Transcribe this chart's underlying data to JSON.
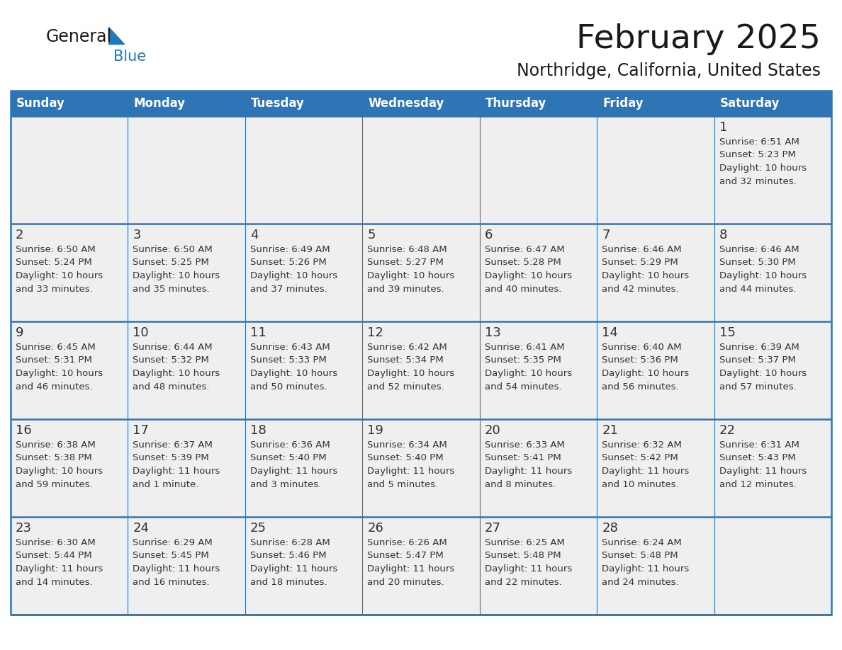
{
  "title": "February 2025",
  "subtitle": "Northridge, California, United States",
  "header_bg": "#2E75B6",
  "header_text_color": "#FFFFFF",
  "day_headers": [
    "Sunday",
    "Monday",
    "Tuesday",
    "Wednesday",
    "Thursday",
    "Friday",
    "Saturday"
  ],
  "row_bg": "#EFEFEF",
  "cell_border_color": "#2E75B6",
  "date_color": "#333333",
  "info_color": "#333333",
  "title_color": "#1A1A1A",
  "subtitle_color": "#1A1A1A",
  "logo_general_color": "#1A1A1A",
  "logo_blue_color": "#2277BB",
  "calendar_data": [
    [
      null,
      null,
      null,
      null,
      null,
      null,
      {
        "day": 1,
        "sunrise": "6:51 AM",
        "sunset": "5:23 PM",
        "daylight": "10 hours",
        "daylight2": "and 32 minutes."
      }
    ],
    [
      {
        "day": 2,
        "sunrise": "6:50 AM",
        "sunset": "5:24 PM",
        "daylight": "10 hours",
        "daylight2": "and 33 minutes."
      },
      {
        "day": 3,
        "sunrise": "6:50 AM",
        "sunset": "5:25 PM",
        "daylight": "10 hours",
        "daylight2": "and 35 minutes."
      },
      {
        "day": 4,
        "sunrise": "6:49 AM",
        "sunset": "5:26 PM",
        "daylight": "10 hours",
        "daylight2": "and 37 minutes."
      },
      {
        "day": 5,
        "sunrise": "6:48 AM",
        "sunset": "5:27 PM",
        "daylight": "10 hours",
        "daylight2": "and 39 minutes."
      },
      {
        "day": 6,
        "sunrise": "6:47 AM",
        "sunset": "5:28 PM",
        "daylight": "10 hours",
        "daylight2": "and 40 minutes."
      },
      {
        "day": 7,
        "sunrise": "6:46 AM",
        "sunset": "5:29 PM",
        "daylight": "10 hours",
        "daylight2": "and 42 minutes."
      },
      {
        "day": 8,
        "sunrise": "6:46 AM",
        "sunset": "5:30 PM",
        "daylight": "10 hours",
        "daylight2": "and 44 minutes."
      }
    ],
    [
      {
        "day": 9,
        "sunrise": "6:45 AM",
        "sunset": "5:31 PM",
        "daylight": "10 hours",
        "daylight2": "and 46 minutes."
      },
      {
        "day": 10,
        "sunrise": "6:44 AM",
        "sunset": "5:32 PM",
        "daylight": "10 hours",
        "daylight2": "and 48 minutes."
      },
      {
        "day": 11,
        "sunrise": "6:43 AM",
        "sunset": "5:33 PM",
        "daylight": "10 hours",
        "daylight2": "and 50 minutes."
      },
      {
        "day": 12,
        "sunrise": "6:42 AM",
        "sunset": "5:34 PM",
        "daylight": "10 hours",
        "daylight2": "and 52 minutes."
      },
      {
        "day": 13,
        "sunrise": "6:41 AM",
        "sunset": "5:35 PM",
        "daylight": "10 hours",
        "daylight2": "and 54 minutes."
      },
      {
        "day": 14,
        "sunrise": "6:40 AM",
        "sunset": "5:36 PM",
        "daylight": "10 hours",
        "daylight2": "and 56 minutes."
      },
      {
        "day": 15,
        "sunrise": "6:39 AM",
        "sunset": "5:37 PM",
        "daylight": "10 hours",
        "daylight2": "and 57 minutes."
      }
    ],
    [
      {
        "day": 16,
        "sunrise": "6:38 AM",
        "sunset": "5:38 PM",
        "daylight": "10 hours",
        "daylight2": "and 59 minutes."
      },
      {
        "day": 17,
        "sunrise": "6:37 AM",
        "sunset": "5:39 PM",
        "daylight": "11 hours",
        "daylight2": "and 1 minute."
      },
      {
        "day": 18,
        "sunrise": "6:36 AM",
        "sunset": "5:40 PM",
        "daylight": "11 hours",
        "daylight2": "and 3 minutes."
      },
      {
        "day": 19,
        "sunrise": "6:34 AM",
        "sunset": "5:40 PM",
        "daylight": "11 hours",
        "daylight2": "and 5 minutes."
      },
      {
        "day": 20,
        "sunrise": "6:33 AM",
        "sunset": "5:41 PM",
        "daylight": "11 hours",
        "daylight2": "and 8 minutes."
      },
      {
        "day": 21,
        "sunrise": "6:32 AM",
        "sunset": "5:42 PM",
        "daylight": "11 hours",
        "daylight2": "and 10 minutes."
      },
      {
        "day": 22,
        "sunrise": "6:31 AM",
        "sunset": "5:43 PM",
        "daylight": "11 hours",
        "daylight2": "and 12 minutes."
      }
    ],
    [
      {
        "day": 23,
        "sunrise": "6:30 AM",
        "sunset": "5:44 PM",
        "daylight": "11 hours",
        "daylight2": "and 14 minutes."
      },
      {
        "day": 24,
        "sunrise": "6:29 AM",
        "sunset": "5:45 PM",
        "daylight": "11 hours",
        "daylight2": "and 16 minutes."
      },
      {
        "day": 25,
        "sunrise": "6:28 AM",
        "sunset": "5:46 PM",
        "daylight": "11 hours",
        "daylight2": "and 18 minutes."
      },
      {
        "day": 26,
        "sunrise": "6:26 AM",
        "sunset": "5:47 PM",
        "daylight": "11 hours",
        "daylight2": "and 20 minutes."
      },
      {
        "day": 27,
        "sunrise": "6:25 AM",
        "sunset": "5:48 PM",
        "daylight": "11 hours",
        "daylight2": "and 22 minutes."
      },
      {
        "day": 28,
        "sunrise": "6:24 AM",
        "sunset": "5:48 PM",
        "daylight": "11 hours",
        "daylight2": "and 24 minutes."
      },
      null
    ]
  ]
}
